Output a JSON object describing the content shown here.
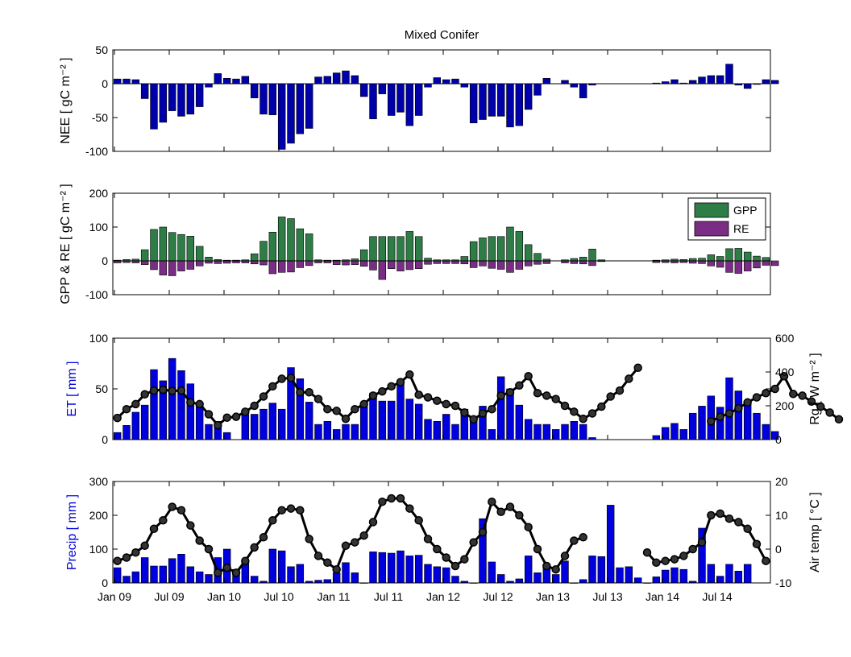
{
  "chart_data": [
    {
      "type": "bar",
      "title": "Mixed Conifer",
      "ylabel": "NEE [ gC m⁻² ]",
      "ylim": [
        -100,
        50
      ],
      "yticks": [
        50,
        0,
        -50,
        -100
      ],
      "grid": false,
      "series": [
        {
          "color": "#0000aa",
          "values": [
            7,
            7,
            6,
            -22,
            -67,
            -57,
            -40,
            -48,
            -45,
            -34,
            -5,
            15,
            8,
            7,
            11,
            -21,
            -45,
            -46,
            -97,
            -88,
            -74,
            -66,
            10,
            11,
            16,
            19,
            12,
            -19,
            -52,
            -15,
            -47,
            -42,
            -62,
            -47,
            -5,
            9,
            6,
            7,
            -5,
            -58,
            -53,
            -48,
            -48,
            -64,
            -62,
            -38,
            -17,
            8,
            null,
            5,
            -5,
            -21,
            -2,
            null,
            null,
            null,
            null,
            null,
            null,
            1,
            3,
            6,
            1,
            5,
            10,
            12,
            12,
            29,
            -2,
            -7,
            -1,
            6,
            5
          ]
        }
      ]
    },
    {
      "type": "bar",
      "ylabel": "GPP & RE [ gC m⁻² ]",
      "ylim": [
        -100,
        200
      ],
      "yticks": [
        200,
        100,
        0,
        -100
      ],
      "legend": {
        "placement": "top-right",
        "entries": [
          "GPP",
          "RE"
        ]
      },
      "series": [
        {
          "name": "GPP",
          "color": "#2e7d46",
          "values": [
            2,
            4,
            5,
            33,
            93,
            100,
            84,
            78,
            73,
            43,
            11,
            4,
            2,
            2,
            3,
            21,
            58,
            85,
            130,
            125,
            95,
            80,
            3,
            2,
            2,
            3,
            6,
            33,
            72,
            72,
            72,
            72,
            87,
            72,
            8,
            3,
            3,
            3,
            13,
            57,
            68,
            72,
            72,
            100,
            87,
            48,
            22,
            5,
            null,
            3,
            7,
            11,
            35,
            3,
            null,
            null,
            null,
            null,
            null,
            2,
            3,
            5,
            4,
            7,
            8,
            18,
            13,
            36,
            37,
            26,
            14,
            10
          ]
        },
        {
          "name": "RE",
          "color": "#7b2d86",
          "values": [
            -6,
            -5,
            -6,
            -11,
            -26,
            -42,
            -44,
            -30,
            -25,
            -15,
            -7,
            -8,
            -7,
            -6,
            -6,
            -9,
            -12,
            -38,
            -34,
            -33,
            -20,
            -14,
            -6,
            -6,
            -11,
            -12,
            -11,
            -16,
            -27,
            -55,
            -23,
            -30,
            -26,
            -23,
            -10,
            -8,
            -8,
            -8,
            -9,
            -20,
            -15,
            -22,
            -25,
            -34,
            -25,
            -15,
            -10,
            -8,
            null,
            -6,
            -8,
            -9,
            -14,
            -2,
            null,
            null,
            null,
            null,
            null,
            -5,
            -5,
            -6,
            -5,
            -7,
            -8,
            -15,
            -19,
            -34,
            -37,
            -30,
            -21,
            -13,
            -14
          ]
        }
      ]
    },
    {
      "type": "bar",
      "ylabel": "ET [ mm ]",
      "ylabel_right": "Rg [ W m⁻² ]",
      "ylim": [
        0,
        100
      ],
      "ylim_right": [
        0,
        600
      ],
      "yticks": [
        100,
        50,
        0
      ],
      "yticks_right": [
        600,
        400,
        200,
        0
      ],
      "series": [
        {
          "name": "ET",
          "color": "#0000dd",
          "values": [
            7,
            14,
            27,
            34,
            69,
            58,
            80,
            68,
            55,
            35,
            15,
            18,
            7,
            null,
            25,
            25,
            30,
            36,
            30,
            71,
            60,
            37,
            15,
            18,
            10,
            15,
            15,
            35,
            46,
            38,
            38,
            55,
            40,
            35,
            20,
            18,
            25,
            15,
            30,
            20,
            33,
            10,
            62,
            50,
            34,
            20,
            15,
            15,
            10,
            15,
            18,
            15,
            2,
            null,
            null,
            null,
            null,
            null,
            null,
            4,
            12,
            16,
            10,
            26,
            33,
            43,
            32,
            61,
            48,
            36,
            26,
            15,
            8
          ]
        },
        {
          "name": "Rg",
          "type": "line",
          "axis": "right",
          "color": "#000000",
          "values": [
            128,
            180,
            210,
            268,
            290,
            295,
            288,
            290,
            220,
            210,
            150,
            85,
            130,
            135,
            165,
            200,
            255,
            315,
            360,
            365,
            280,
            280,
            240,
            180,
            170,
            123,
            180,
            210,
            260,
            285,
            315,
            340,
            385,
            265,
            250,
            230,
            210,
            200,
            160,
            120,
            155,
            180,
            260,
            280,
            320,
            375,
            275,
            260,
            240,
            200,
            165,
            123,
            155,
            195,
            255,
            290,
            360,
            425,
            null,
            null,
            null,
            null,
            null,
            null,
            null,
            108,
            135,
            155,
            185,
            220,
            250,
            275,
            300,
            375,
            270,
            260,
            225,
            195,
            160,
            120
          ]
        }
      ]
    },
    {
      "type": "bar",
      "ylabel": "Precip [ mm ]",
      "ylabel_right": "Air temp [ °C ]",
      "ylim": [
        0,
        300
      ],
      "ylim_right": [
        -10,
        20
      ],
      "yticks": [
        300,
        200,
        100,
        0
      ],
      "yticks_right": [
        20,
        10,
        0,
        -10
      ],
      "series": [
        {
          "name": "Precip",
          "color": "#0000dd",
          "values": [
            45,
            20,
            33,
            75,
            50,
            50,
            72,
            85,
            48,
            33,
            25,
            75,
            100,
            40,
            58,
            20,
            5,
            100,
            95,
            48,
            55,
            5,
            8,
            10,
            30,
            60,
            30,
            0,
            92,
            90,
            88,
            95,
            80,
            82,
            55,
            48,
            45,
            20,
            5,
            0,
            190,
            62,
            25,
            5,
            12,
            80,
            30,
            45,
            25,
            65,
            0,
            10,
            80,
            78,
            230,
            45,
            48,
            15,
            0,
            18,
            38,
            45,
            40,
            5,
            162,
            55,
            20,
            55,
            35,
            55
          ]
        },
        {
          "name": "Air temp",
          "type": "line",
          "axis": "right",
          "color": "#000000",
          "values": [
            -3.5,
            -2.5,
            -1,
            1,
            6,
            8.5,
            12.5,
            11.5,
            7,
            2.5,
            0,
            -7,
            -5.5,
            -7,
            -3.5,
            0.5,
            3.5,
            8.5,
            11.5,
            12,
            11.5,
            3,
            -2,
            -4,
            -6,
            1,
            2,
            4,
            8,
            14,
            15,
            15,
            12,
            8.5,
            3,
            0,
            -2.5,
            -5,
            -3,
            2,
            5,
            14,
            11,
            12.5,
            10,
            6.5,
            0,
            -5,
            -6,
            -2,
            2.5,
            3.5,
            null,
            null,
            null,
            null,
            null,
            null,
            -1,
            -4,
            -3.5,
            -3,
            -2,
            0,
            2,
            10,
            10.5,
            9,
            8,
            6,
            1.5,
            -3.5
          ]
        }
      ],
      "xticks": [
        "Jan 09",
        "Jul 09",
        "Jan 10",
        "Jul 10",
        "Jan 11",
        "Jul 11",
        "Jan 12",
        "Jul 12",
        "Jan 13",
        "Jul 13",
        "Jan 14",
        "Jul 14"
      ]
    }
  ],
  "colors": {
    "bar_blue": "#0000dd",
    "nee_blue": "#0000aa",
    "gpp_green": "#2e7d46",
    "re_purple": "#7b2d86",
    "line_black": "#000000",
    "label_blue": "#0000dd"
  }
}
